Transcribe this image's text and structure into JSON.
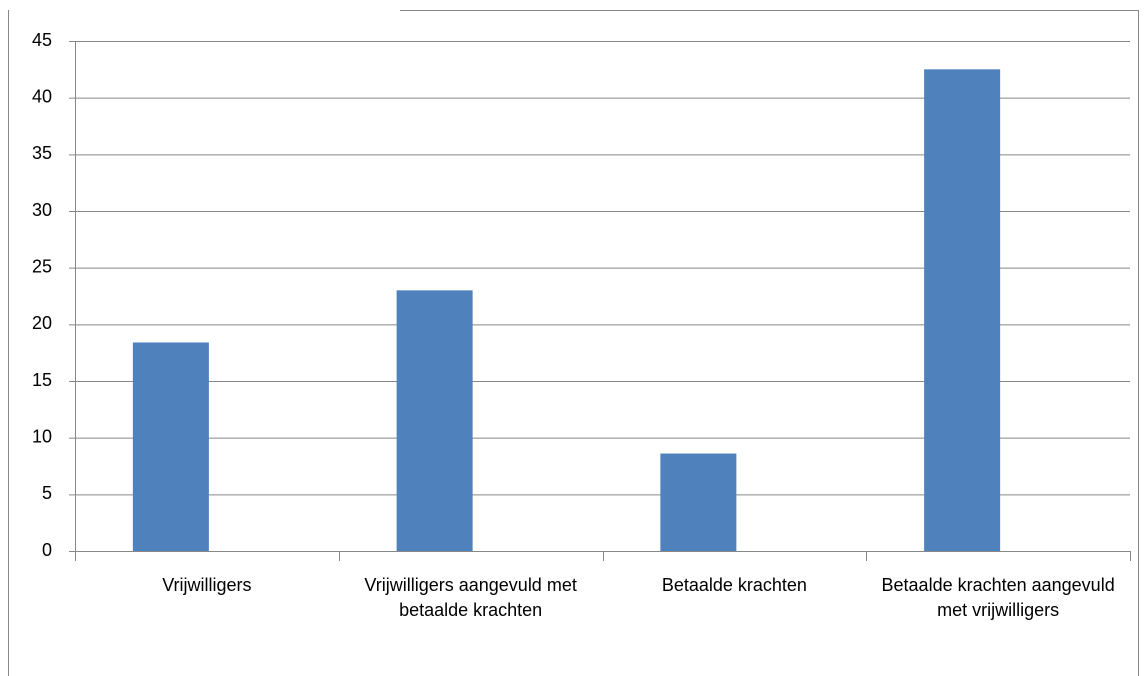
{
  "chart_data": {
    "type": "bar",
    "categories": [
      "Vrijwilligers",
      "Vrijwilligers aangevuld met betaalde krachten",
      "Betaalde krachten",
      "Betaalde krachten aangevuld met vrijwilligers"
    ],
    "values": [
      18.4,
      23,
      8.6,
      42.5
    ],
    "color": "#4f81bd",
    "ylim": [
      0,
      45
    ],
    "yticks": [
      0,
      5,
      10,
      15,
      20,
      25,
      30,
      35,
      40,
      45
    ],
    "grid": true
  }
}
